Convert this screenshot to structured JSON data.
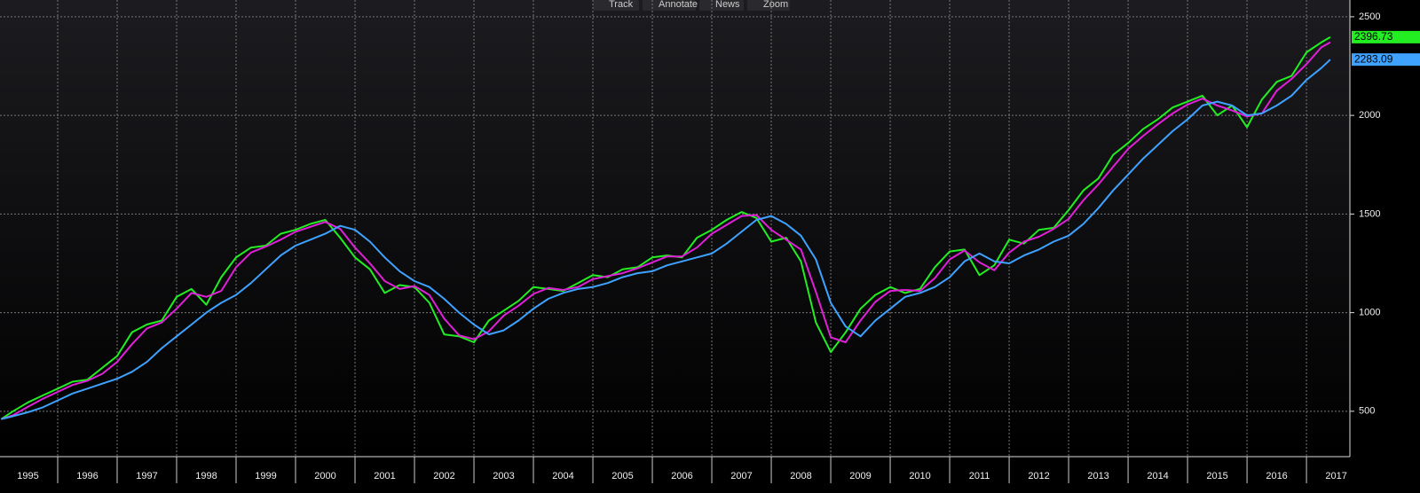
{
  "toolbar": [
    "Track",
    "Annotate",
    "News",
    "Zoom"
  ],
  "chart_data": {
    "type": "line",
    "x": [
      1995.05,
      1995.25,
      1995.5,
      1995.75,
      1996,
      1996.25,
      1996.5,
      1996.75,
      1997,
      1997.25,
      1997.5,
      1997.75,
      1998,
      1998.25,
      1998.5,
      1998.75,
      1999,
      1999.25,
      1999.5,
      1999.75,
      2000,
      2000.25,
      2000.5,
      2000.75,
      2001,
      2001.25,
      2001.5,
      2001.75,
      2002,
      2002.25,
      2002.5,
      2002.75,
      2003,
      2003.25,
      2003.5,
      2003.75,
      2004,
      2004.25,
      2004.5,
      2004.75,
      2005,
      2005.25,
      2005.5,
      2005.75,
      2006,
      2006.25,
      2006.5,
      2006.75,
      2007,
      2007.25,
      2007.5,
      2007.75,
      2008,
      2008.25,
      2008.5,
      2008.75,
      2009,
      2009.25,
      2009.5,
      2009.75,
      2010,
      2010.25,
      2010.5,
      2010.75,
      2011,
      2011.25,
      2011.5,
      2011.75,
      2012,
      2012.25,
      2012.5,
      2012.75,
      2013,
      2013.25,
      2013.5,
      2013.75,
      2014,
      2014.25,
      2014.5,
      2014.75,
      2015,
      2015.25,
      2015.5,
      2015.75,
      2016,
      2016.25,
      2016.5,
      2016.75,
      2017,
      2017.25,
      2017.4
    ],
    "series": [
      {
        "color": "#22ee22",
        "label_last": true,
        "values": [
          460,
          500,
          545,
          580,
          615,
          650,
          660,
          720,
          780,
          900,
          940,
          960,
          1080,
          1120,
          1040,
          1180,
          1280,
          1330,
          1340,
          1400,
          1420,
          1450,
          1470,
          1380,
          1280,
          1220,
          1100,
          1140,
          1130,
          1050,
          890,
          880,
          850,
          960,
          1010,
          1060,
          1130,
          1120,
          1110,
          1150,
          1190,
          1180,
          1220,
          1230,
          1280,
          1290,
          1280,
          1380,
          1420,
          1470,
          1510,
          1480,
          1360,
          1380,
          1260,
          950,
          800,
          900,
          1020,
          1090,
          1130,
          1100,
          1120,
          1230,
          1310,
          1320,
          1190,
          1240,
          1370,
          1350,
          1420,
          1430,
          1520,
          1620,
          1680,
          1800,
          1860,
          1930,
          1980,
          2040,
          2070,
          2100,
          2000,
          2050,
          1940,
          2080,
          2170,
          2200,
          2320,
          2370,
          2396.73
        ]
      },
      {
        "color": "#e020d8",
        "label_last": false,
        "values": [
          460,
          480,
          523,
          563,
          598,
          633,
          655,
          690,
          750,
          840,
          920,
          950,
          1020,
          1100,
          1080,
          1110,
          1230,
          1305,
          1335,
          1370,
          1410,
          1435,
          1460,
          1425,
          1330,
          1250,
          1160,
          1120,
          1135,
          1090,
          970,
          885,
          865,
          905,
          985,
          1035,
          1095,
          1125,
          1115,
          1130,
          1170,
          1185,
          1200,
          1225,
          1255,
          1285,
          1285,
          1330,
          1400,
          1445,
          1490,
          1495,
          1420,
          1370,
          1320,
          1105,
          875,
          850,
          960,
          1055,
          1110,
          1115,
          1110,
          1175,
          1270,
          1315,
          1255,
          1215,
          1305,
          1360,
          1385,
          1425,
          1475,
          1570,
          1650,
          1740,
          1830,
          1895,
          1955,
          2010,
          2055,
          2085,
          2050,
          2025,
          1995,
          2010,
          2125,
          2185,
          2260,
          2345,
          2370
        ]
      },
      {
        "color": "#3fa2ff",
        "label_last": true,
        "values": [
          460,
          475,
          495,
          520,
          555,
          590,
          615,
          640,
          665,
          700,
          750,
          820,
          880,
          940,
          1000,
          1050,
          1090,
          1150,
          1220,
          1290,
          1340,
          1370,
          1400,
          1440,
          1420,
          1360,
          1280,
          1210,
          1160,
          1130,
          1070,
          1000,
          940,
          890,
          910,
          960,
          1020,
          1070,
          1100,
          1120,
          1130,
          1150,
          1180,
          1200,
          1210,
          1240,
          1260,
          1280,
          1300,
          1350,
          1410,
          1470,
          1490,
          1450,
          1390,
          1270,
          1050,
          930,
          880,
          960,
          1020,
          1080,
          1100,
          1130,
          1180,
          1260,
          1300,
          1260,
          1250,
          1290,
          1320,
          1360,
          1390,
          1450,
          1530,
          1620,
          1700,
          1780,
          1850,
          1920,
          1980,
          2050,
          2070,
          2050,
          2000,
          2010,
          2050,
          2100,
          2180,
          2240,
          2283.09
        ]
      }
    ],
    "xlim": [
      1995.03,
      2017.73
    ],
    "xticks": [
      {
        "value": 1995.5,
        "label": "1995"
      },
      {
        "value": 1996.5,
        "label": "1996"
      },
      {
        "value": 1997.5,
        "label": "1997"
      },
      {
        "value": 1998.5,
        "label": "1998"
      },
      {
        "value": 1999.5,
        "label": "1999"
      },
      {
        "value": 2000.5,
        "label": "2000"
      },
      {
        "value": 2001.5,
        "label": "2001"
      },
      {
        "value": 2002.5,
        "label": "2002"
      },
      {
        "value": 2003.5,
        "label": "2003"
      },
      {
        "value": 2004.5,
        "label": "2004"
      },
      {
        "value": 2005.5,
        "label": "2005"
      },
      {
        "value": 2006.5,
        "label": "2006"
      },
      {
        "value": 2007.5,
        "label": "2007"
      },
      {
        "value": 2008.5,
        "label": "2008"
      },
      {
        "value": 2009.5,
        "label": "2009"
      },
      {
        "value": 2010.5,
        "label": "2010"
      },
      {
        "value": 2011.5,
        "label": "2011"
      },
      {
        "value": 2012.5,
        "label": "2012"
      },
      {
        "value": 2013.5,
        "label": "2013"
      },
      {
        "value": 2014.5,
        "label": "2014"
      },
      {
        "value": 2015.5,
        "label": "2015"
      },
      {
        "value": 2016.5,
        "label": "2016"
      },
      {
        "value": 2017.5,
        "label": "2017"
      }
    ],
    "ylim": [
      270,
      2585
    ],
    "yticks": [
      500,
      1000,
      1500,
      2000,
      2500
    ],
    "grid": true
  }
}
